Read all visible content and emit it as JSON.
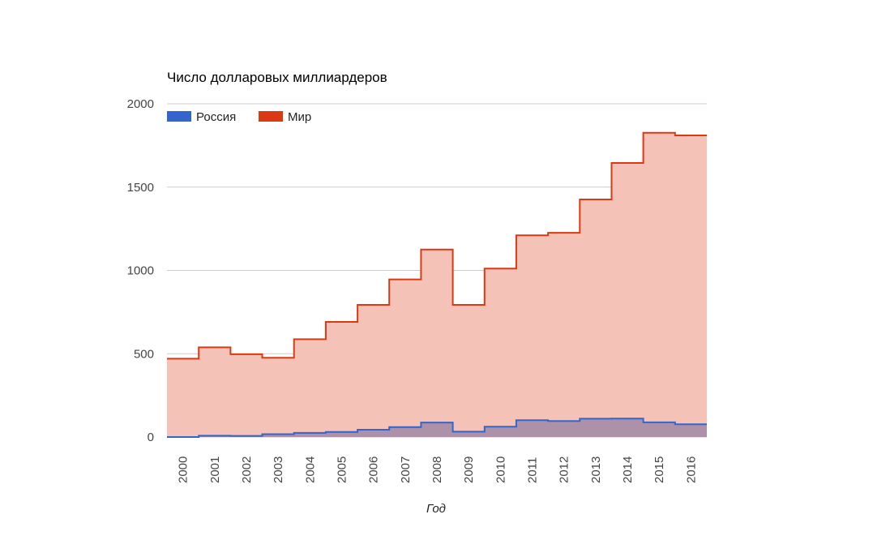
{
  "chart_data": {
    "type": "area",
    "subtype": "stepped",
    "title": "Число долларовых миллиардеров",
    "xlabel": "Год",
    "ylabel": "",
    "categories": [
      "2000",
      "2001",
      "2002",
      "2003",
      "2004",
      "2005",
      "2006",
      "2007",
      "2008",
      "2009",
      "2010",
      "2011",
      "2012",
      "2013",
      "2014",
      "2015",
      "2016"
    ],
    "ylim": [
      0,
      2000
    ],
    "yticks": [
      "0",
      "500",
      "1000",
      "1500",
      "2000"
    ],
    "grid": true,
    "legend_position": "top-left",
    "series": [
      {
        "name": "Мир",
        "color": "#dc3912",
        "fill": "#f4c2b6",
        "values": [
          470,
          538,
          497,
          476,
          587,
          691,
          793,
          946,
          1125,
          793,
          1011,
          1210,
          1226,
          1426,
          1645,
          1826,
          1810
        ]
      },
      {
        "name": "Россия",
        "color": "#3366cc",
        "fill": "#a88ea8",
        "values": [
          0,
          8,
          7,
          17,
          25,
          30,
          44,
          60,
          87,
          32,
          62,
          101,
          96,
          110,
          111,
          88,
          77
        ]
      }
    ]
  }
}
